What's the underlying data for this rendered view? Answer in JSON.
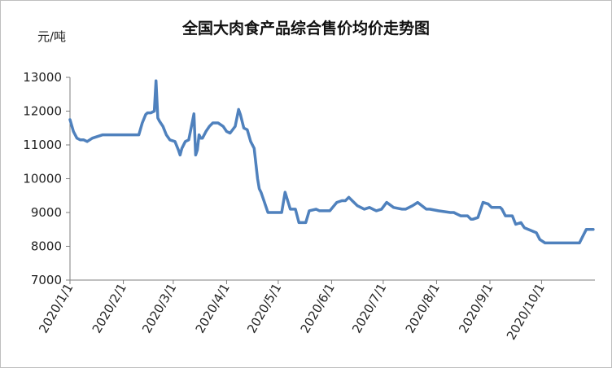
{
  "chart_data": {
    "type": "line",
    "title": "全国大肉食产品综合售价均价走势图",
    "ylabel": "元/吨",
    "xlabel": "",
    "ylim": [
      7000,
      13000
    ],
    "yticks": [
      "7000",
      "8000",
      "9000",
      "10000",
      "11000",
      "12000",
      "13000"
    ],
    "xticks": [
      "2020/1/1",
      "2020/2/1",
      "2020/3/1",
      "2020/4/1",
      "2020/5/1",
      "2020/6/1",
      "2020/7/1",
      "2020/8/1",
      "2020/9/1",
      "2020/10/1"
    ],
    "xlim": [
      "2020-01-01",
      "2020-11-01"
    ],
    "grid": false,
    "legend": "none",
    "line_color": "#4f81bd",
    "series": [
      {
        "x": [
          "2020-01-01",
          "2020-01-03",
          "2020-01-05",
          "2020-01-07",
          "2020-01-09",
          "2020-01-11",
          "2020-01-14",
          "2020-01-20",
          "2020-01-31",
          "2020-02-10",
          "2020-02-12",
          "2020-02-14",
          "2020-02-15",
          "2020-02-17",
          "2020-02-19",
          "2020-02-20",
          "2020-02-21",
          "2020-02-22",
          "2020-02-24",
          "2020-02-26",
          "2020-02-28",
          "2020-03-02",
          "2020-03-04",
          "2020-03-05",
          "2020-03-06",
          "2020-03-08",
          "2020-03-10",
          "2020-03-12",
          "2020-03-13",
          "2020-03-14",
          "2020-03-15",
          "2020-03-16",
          "2020-03-17",
          "2020-03-18",
          "2020-03-20",
          "2020-03-22",
          "2020-03-24",
          "2020-03-27",
          "2020-03-30",
          "2020-04-01",
          "2020-04-03",
          "2020-04-06",
          "2020-04-08",
          "2020-04-09",
          "2020-04-11",
          "2020-04-13",
          "2020-04-15",
          "2020-04-17",
          "2020-04-19",
          "2020-04-20",
          "2020-04-21",
          "2020-04-23",
          "2020-04-25",
          "2020-04-27",
          "2020-05-03",
          "2020-05-05",
          "2020-05-08",
          "2020-05-11",
          "2020-05-13",
          "2020-05-17",
          "2020-05-19",
          "2020-05-23",
          "2020-05-25",
          "2020-05-31",
          "2020-06-04",
          "2020-06-07",
          "2020-06-09",
          "2020-06-11",
          "2020-06-13",
          "2020-06-16",
          "2020-06-20",
          "2020-06-23",
          "2020-06-25",
          "2020-06-27",
          "2020-06-30",
          "2020-07-03",
          "2020-07-07",
          "2020-07-12",
          "2020-07-14",
          "2020-07-16",
          "2020-07-18",
          "2020-07-21",
          "2020-07-26",
          "2020-07-28",
          "2020-08-02",
          "2020-08-09",
          "2020-08-11",
          "2020-08-13",
          "2020-08-15",
          "2020-08-19",
          "2020-08-21",
          "2020-08-22",
          "2020-08-25",
          "2020-08-28",
          "2020-08-31",
          "2020-09-01",
          "2020-09-02",
          "2020-09-07",
          "2020-09-08",
          "2020-09-10",
          "2020-09-12",
          "2020-09-14",
          "2020-09-16",
          "2020-09-19",
          "2020-09-21",
          "2020-09-28",
          "2020-09-30",
          "2020-10-03",
          "2020-10-16",
          "2020-10-23",
          "2020-10-25",
          "2020-10-27",
          "2020-10-31"
        ],
        "values": [
          11750,
          11400,
          11200,
          11150,
          11150,
          11100,
          11200,
          11300,
          11300,
          11300,
          11650,
          11900,
          11950,
          11950,
          12000,
          12900,
          11800,
          11700,
          11550,
          11300,
          11150,
          11100,
          10850,
          10700,
          10900,
          11100,
          11150,
          11650,
          11920,
          10700,
          10850,
          11300,
          11200,
          11200,
          11400,
          11550,
          11650,
          11650,
          11550,
          11400,
          11350,
          11550,
          12050,
          11900,
          11500,
          11450,
          11100,
          10900,
          10000,
          9700,
          9600,
          9300,
          9000,
          9000,
          9000,
          9600,
          9100,
          9100,
          8700,
          8700,
          9050,
          9100,
          9050,
          9050,
          9300,
          9350,
          9350,
          9450,
          9350,
          9200,
          9100,
          9150,
          9100,
          9050,
          9100,
          9300,
          9150,
          9100,
          9100,
          9150,
          9200,
          9300,
          9100,
          9100,
          9050,
          9000,
          9000,
          8950,
          8900,
          8900,
          8800,
          8800,
          8850,
          9300,
          9250,
          9200,
          9150,
          9150,
          9100,
          8900,
          8900,
          8900,
          8650,
          8700,
          8550,
          8400,
          8200,
          8100,
          8100,
          8100,
          8300,
          8500,
          8500
        ]
      }
    ]
  }
}
